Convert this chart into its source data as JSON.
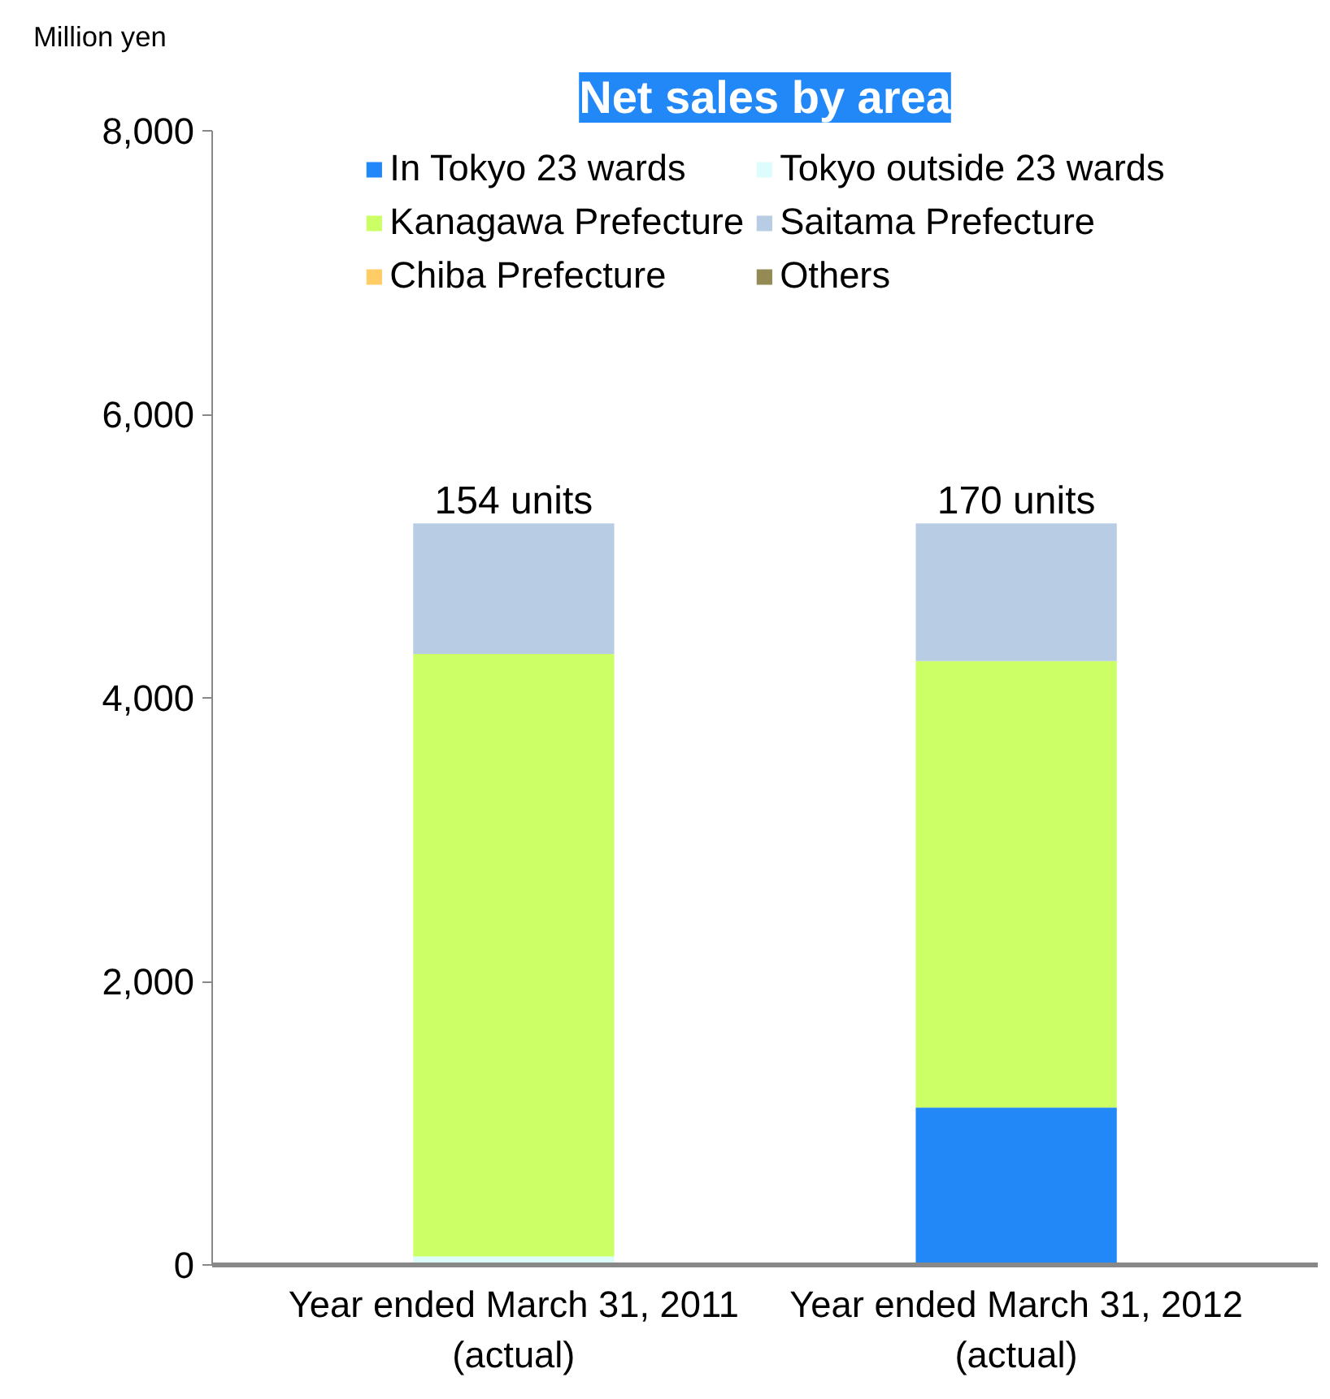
{
  "chart_data": {
    "type": "bar",
    "title": "Net sales by area",
    "ylabel": "Million yen",
    "stacked": true,
    "categories": [
      "Year ended March 31, 2011\n(actual)",
      "Year ended March 31, 2012\n(actual)"
    ],
    "series": [
      {
        "name": "In Tokyo 23 wards",
        "color": "#2288f8",
        "values": [
          0,
          1110
        ]
      },
      {
        "name": "Tokyo outside 23 wards",
        "color": "#ddfcfc",
        "values": [
          60,
          0
        ]
      },
      {
        "name": "Kanagawa Prefecture",
        "color": "#ccff66",
        "values": [
          4250,
          3150
        ]
      },
      {
        "name": "Saitama Prefecture",
        "color": "#b8cce4",
        "values": [
          920,
          970
        ]
      },
      {
        "name": "Chiba Prefecture",
        "color": "#ffcc66",
        "values": [
          0,
          0
        ]
      },
      {
        "name": "Others",
        "color": "#948a54",
        "values": [
          0,
          0
        ]
      }
    ],
    "annotations": [
      {
        "text": "154 units",
        "x": "Year ended March 31, 2011\n(actual)",
        "y": 5230
      },
      {
        "text": "170 units",
        "x": "Year ended March 31, 2012\n(actual)",
        "y": 5230
      }
    ],
    "ylim": [
      0,
      8000
    ],
    "yticks": [
      {
        "value": 0,
        "label": "0"
      },
      {
        "value": 2000,
        "label": "2,000"
      },
      {
        "value": 4000,
        "label": "4,000"
      },
      {
        "value": 6000,
        "label": "6,000"
      },
      {
        "value": 8000,
        "label": "8,000"
      }
    ],
    "grid": false,
    "legend": "top"
  }
}
